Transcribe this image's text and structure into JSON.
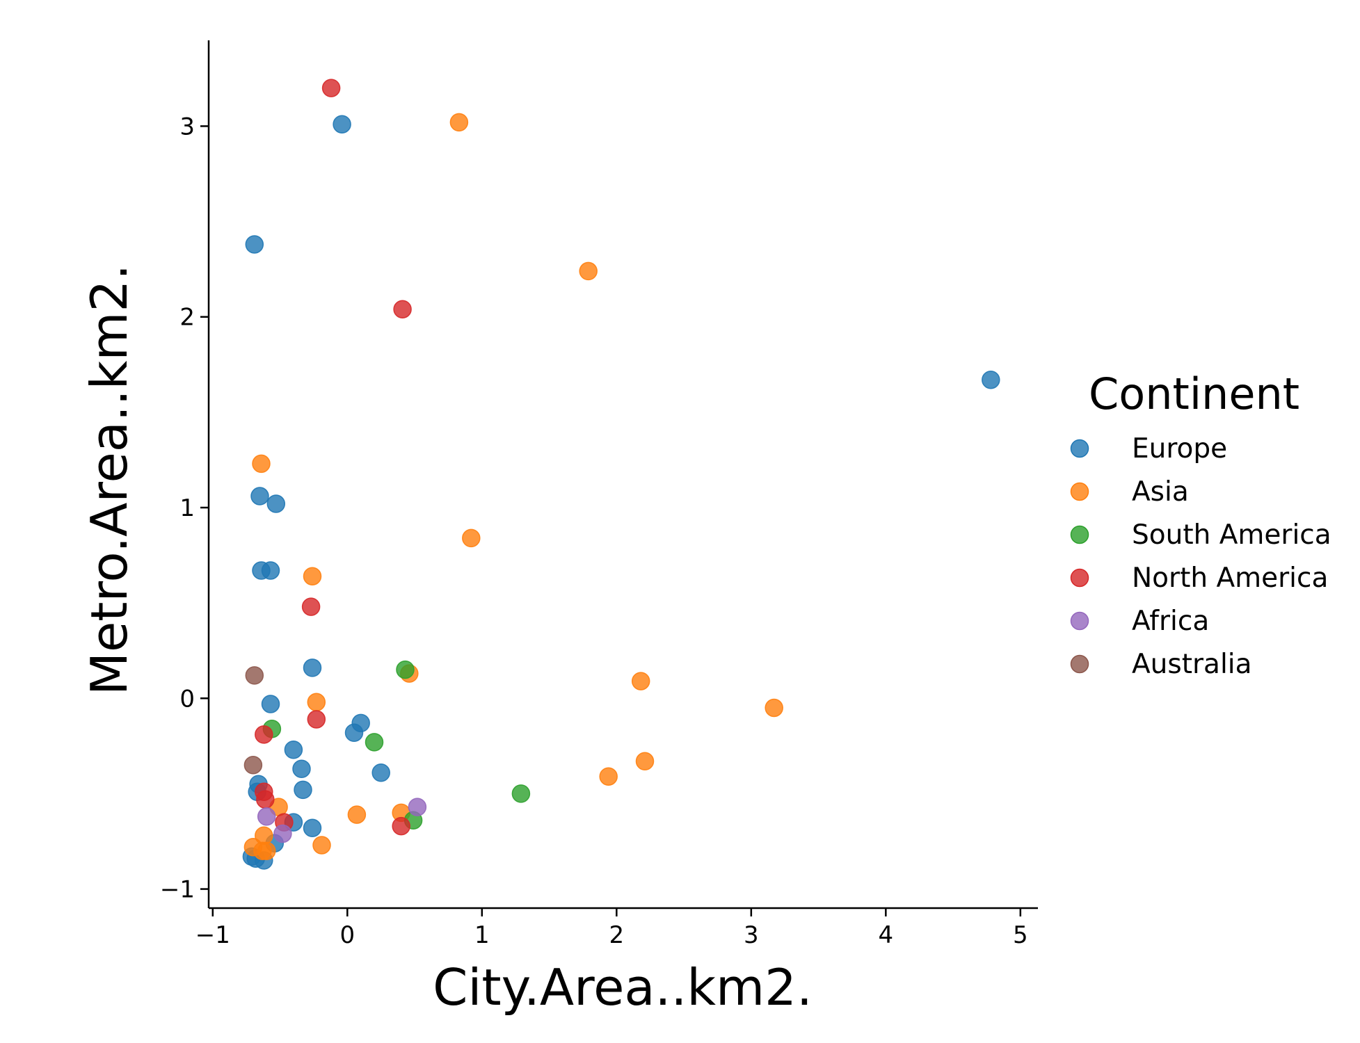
{
  "chart_data": {
    "type": "scatter",
    "title": "",
    "xlabel": "City.Area..km2.",
    "ylabel": "Metro.Area..km2.",
    "xlim": [
      -1.03,
      5.13
    ],
    "ylim": [
      -1.1,
      3.45
    ],
    "xticks": [
      -1,
      0,
      1,
      2,
      3,
      4,
      5
    ],
    "yticks": [
      -1,
      0,
      1,
      2,
      3
    ],
    "xtick_labels": [
      "−1",
      "0",
      "1",
      "2",
      "3",
      "4",
      "5"
    ],
    "ytick_labels": [
      "−1",
      "0",
      "1",
      "2",
      "3"
    ],
    "grid": false,
    "legend": {
      "title": "Continent",
      "placement": "right"
    },
    "series": [
      {
        "name": "Europe",
        "color": "#1f77b4",
        "points": [
          [
            -0.04,
            3.01
          ],
          [
            -0.69,
            2.38
          ],
          [
            4.78,
            1.67
          ],
          [
            -0.65,
            1.06
          ],
          [
            -0.53,
            1.02
          ],
          [
            -0.64,
            0.67
          ],
          [
            -0.57,
            0.67
          ],
          [
            -0.26,
            0.16
          ],
          [
            -0.57,
            -0.03
          ],
          [
            0.1,
            -0.13
          ],
          [
            0.05,
            -0.18
          ],
          [
            -0.4,
            -0.27
          ],
          [
            -0.34,
            -0.37
          ],
          [
            0.25,
            -0.39
          ],
          [
            -0.33,
            -0.48
          ],
          [
            -0.66,
            -0.45
          ],
          [
            -0.67,
            -0.49
          ],
          [
            -0.4,
            -0.65
          ],
          [
            -0.26,
            -0.68
          ],
          [
            -0.54,
            -0.76
          ],
          [
            -0.71,
            -0.83
          ],
          [
            -0.62,
            -0.85
          ],
          [
            -0.68,
            -0.84
          ]
        ]
      },
      {
        "name": "Asia",
        "color": "#ff7f0e",
        "points": [
          [
            0.83,
            3.02
          ],
          [
            1.79,
            2.24
          ],
          [
            -0.64,
            1.23
          ],
          [
            0.92,
            0.84
          ],
          [
            -0.26,
            0.64
          ],
          [
            0.46,
            0.13
          ],
          [
            2.18,
            0.09
          ],
          [
            -0.23,
            -0.02
          ],
          [
            3.17,
            -0.05
          ],
          [
            2.21,
            -0.33
          ],
          [
            1.94,
            -0.41
          ],
          [
            -0.51,
            -0.57
          ],
          [
            0.07,
            -0.61
          ],
          [
            0.4,
            -0.6
          ],
          [
            -0.62,
            -0.72
          ],
          [
            -0.19,
            -0.77
          ],
          [
            -0.7,
            -0.78
          ],
          [
            -0.63,
            -0.8
          ],
          [
            -0.6,
            -0.8
          ]
        ]
      },
      {
        "name": "South America",
        "color": "#2ca02c",
        "points": [
          [
            0.43,
            0.15
          ],
          [
            -0.56,
            -0.16
          ],
          [
            0.2,
            -0.23
          ],
          [
            1.29,
            -0.5
          ],
          [
            0.49,
            -0.64
          ]
        ]
      },
      {
        "name": "North America",
        "color": "#d62728",
        "points": [
          [
            -0.12,
            3.2
          ],
          [
            0.41,
            2.04
          ],
          [
            -0.27,
            0.48
          ],
          [
            -0.23,
            -0.11
          ],
          [
            -0.62,
            -0.19
          ],
          [
            -0.62,
            -0.49
          ],
          [
            -0.61,
            -0.53
          ],
          [
            -0.47,
            -0.65
          ],
          [
            0.4,
            -0.67
          ]
        ]
      },
      {
        "name": "Africa",
        "color": "#9467bd",
        "points": [
          [
            0.52,
            -0.57
          ],
          [
            -0.6,
            -0.62
          ],
          [
            -0.48,
            -0.71
          ]
        ]
      },
      {
        "name": "Australia",
        "color": "#8c564b",
        "points": [
          [
            -0.69,
            0.12
          ],
          [
            -0.7,
            -0.35
          ]
        ]
      }
    ]
  }
}
